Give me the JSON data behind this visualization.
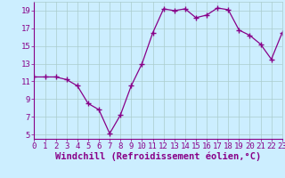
{
  "x": [
    0,
    1,
    2,
    3,
    4,
    5,
    6,
    7,
    8,
    9,
    10,
    11,
    12,
    13,
    14,
    15,
    16,
    17,
    18,
    19,
    20,
    21,
    22,
    23
  ],
  "y": [
    11.5,
    11.5,
    11.5,
    11.2,
    10.5,
    8.5,
    7.8,
    5.1,
    7.2,
    10.5,
    13.0,
    16.5,
    19.2,
    19.0,
    19.2,
    18.2,
    18.5,
    19.3,
    19.1,
    16.8,
    16.2,
    15.2,
    13.5,
    16.5
  ],
  "line_color": "#880088",
  "marker": "s",
  "marker_size": 2.5,
  "bg_color": "#cceeff",
  "grid_color": "#aacccc",
  "tick_color": "#880088",
  "xlabel": "Windchill (Refroidissement éolien,°C)",
  "xlim": [
    0,
    23
  ],
  "ylim": [
    4.5,
    20
  ],
  "yticks": [
    5,
    7,
    9,
    11,
    13,
    15,
    17,
    19
  ],
  "xticks": [
    0,
    1,
    2,
    3,
    4,
    5,
    6,
    7,
    8,
    9,
    10,
    11,
    12,
    13,
    14,
    15,
    16,
    17,
    18,
    19,
    20,
    21,
    22,
    23
  ],
  "font_size": 6.5,
  "xlabel_size": 7.5,
  "lw": 0.9
}
